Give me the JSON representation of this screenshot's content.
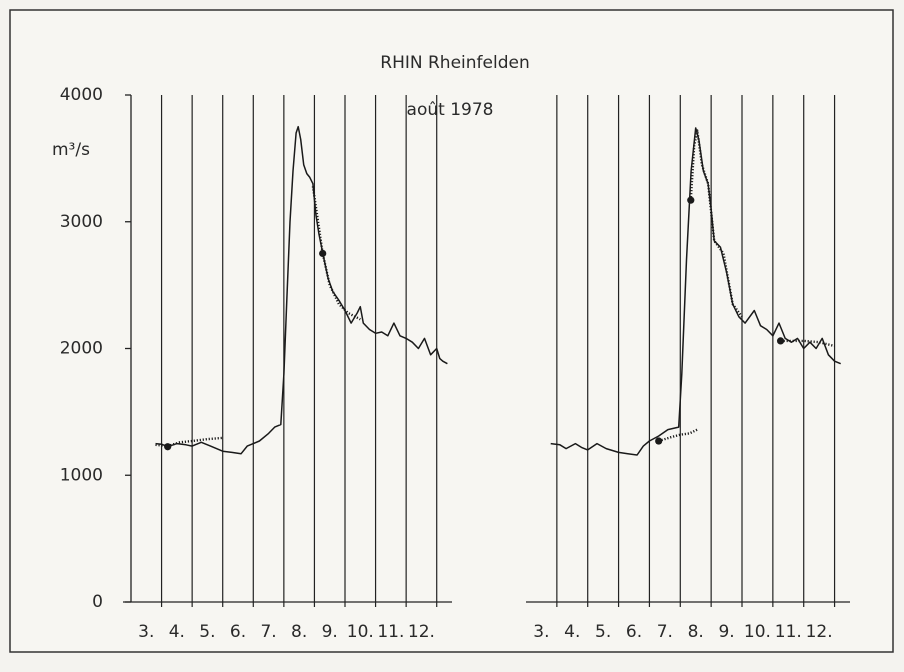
{
  "chart_data": [
    {
      "type": "line",
      "title": "RHIN Rheinfelden",
      "subtitle": "août 1978",
      "y_label": "m³/s",
      "ylim": [
        0,
        4000
      ],
      "yticks": [
        0,
        1000,
        2000,
        3000,
        4000
      ],
      "xlim": [
        3,
        13.5
      ],
      "xticks": [
        {
          "value": 3.5,
          "label": "3."
        },
        {
          "value": 4.5,
          "label": "4."
        },
        {
          "value": 5.5,
          "label": "5."
        },
        {
          "value": 6.5,
          "label": "6."
        },
        {
          "value": 7.5,
          "label": "7."
        },
        {
          "value": 8.5,
          "label": "8."
        },
        {
          "value": 9.5,
          "label": "9."
        },
        {
          "value": 10.5,
          "label": "10."
        },
        {
          "value": 11.5,
          "label": "11."
        },
        {
          "value": 12.5,
          "label": "12."
        }
      ],
      "xgrid": [
        4,
        5,
        6,
        7,
        8,
        9,
        10,
        11,
        12,
        13
      ],
      "series": [
        {
          "style": "solid",
          "color": "#1a1a1a",
          "x": [
            3.8,
            4.0,
            4.2,
            4.5,
            4.8,
            5.0,
            5.3,
            5.6,
            6.0,
            6.3,
            6.6,
            6.8,
            7.0,
            7.2,
            7.5,
            7.7,
            7.9,
            8.0,
            8.1,
            8.2,
            8.3,
            8.4,
            8.47,
            8.55,
            8.65,
            8.75,
            8.85,
            8.95,
            9.05,
            9.15,
            9.3,
            9.45,
            9.6,
            9.8,
            10.0,
            10.2,
            10.4,
            10.5,
            10.6,
            10.8,
            11.0,
            11.2,
            11.4,
            11.6,
            11.8,
            12.0,
            12.2,
            12.4,
            12.6,
            12.8,
            13.0,
            13.1,
            13.2,
            13.35
          ],
          "values": [
            1250,
            1245,
            1225,
            1250,
            1240,
            1230,
            1260,
            1230,
            1190,
            1180,
            1170,
            1230,
            1250,
            1270,
            1330,
            1380,
            1400,
            1800,
            2400,
            3000,
            3400,
            3700,
            3750,
            3650,
            3450,
            3380,
            3350,
            3300,
            3050,
            2900,
            2720,
            2550,
            2450,
            2380,
            2300,
            2200,
            2280,
            2330,
            2200,
            2150,
            2120,
            2130,
            2100,
            2200,
            2100,
            2080,
            2050,
            2000,
            2080,
            1950,
            2000,
            1920,
            1900,
            1880
          ]
        },
        {
          "style": "dotted",
          "color": "#1a1a1a",
          "x": [
            3.8,
            4.2,
            4.6,
            5.0,
            5.5,
            6.0,
            null,
            8.95,
            9.27,
            9.5,
            9.8,
            10.1,
            10.5
          ],
          "values": [
            1240,
            1230,
            1260,
            1270,
            1285,
            1295,
            null,
            3280,
            2750,
            2500,
            2350,
            2280,
            2230
          ]
        },
        {
          "style": "markers",
          "color": "#1a1a1a",
          "x": [
            4.2,
            9.27
          ],
          "values": [
            1225,
            2750
          ]
        }
      ]
    },
    {
      "type": "line",
      "ylim": [
        0,
        4000
      ],
      "xlim": [
        3,
        13.5
      ],
      "xticks": [
        {
          "value": 3.5,
          "label": "3."
        },
        {
          "value": 4.5,
          "label": "4."
        },
        {
          "value": 5.5,
          "label": "5."
        },
        {
          "value": 6.5,
          "label": "6."
        },
        {
          "value": 7.5,
          "label": "7."
        },
        {
          "value": 8.5,
          "label": "8."
        },
        {
          "value": 9.5,
          "label": "9."
        },
        {
          "value": 10.5,
          "label": "10."
        },
        {
          "value": 11.5,
          "label": "11."
        },
        {
          "value": 12.5,
          "label": "12."
        }
      ],
      "xgrid": [
        4,
        5,
        6,
        7,
        8,
        9,
        10,
        11,
        12,
        13
      ],
      "series": [
        {
          "style": "solid",
          "color": "#1a1a1a",
          "x": [
            3.8,
            4.1,
            4.3,
            4.6,
            4.8,
            5.0,
            5.3,
            5.6,
            6.0,
            6.3,
            6.6,
            6.8,
            7.0,
            7.3,
            7.6,
            7.95,
            8.05,
            8.2,
            8.35,
            8.5,
            8.6,
            8.75,
            8.9,
            9.0,
            9.1,
            9.3,
            9.5,
            9.7,
            9.9,
            10.1,
            10.4,
            10.6,
            10.8,
            11.0,
            11.2,
            11.4,
            11.6,
            11.8,
            12.0,
            12.2,
            12.4,
            12.6,
            12.8,
            13.0,
            13.2
          ],
          "values": [
            1250,
            1240,
            1210,
            1250,
            1220,
            1200,
            1250,
            1210,
            1180,
            1170,
            1160,
            1230,
            1270,
            1310,
            1360,
            1380,
            1800,
            2700,
            3400,
            3740,
            3650,
            3400,
            3300,
            3100,
            2850,
            2800,
            2600,
            2350,
            2250,
            2200,
            2300,
            2180,
            2150,
            2100,
            2200,
            2080,
            2050,
            2080,
            2000,
            2050,
            2000,
            2080,
            1950,
            1900,
            1880
          ]
        },
        {
          "style": "dotted",
          "color": "#1a1a1a",
          "x": [
            7.3,
            7.7,
            8.0,
            8.3,
            8.55,
            null,
            8.34,
            8.45,
            8.55,
            8.7,
            8.9,
            9.1,
            9.4,
            9.7,
            10.0,
            null,
            11.25,
            11.6,
            12.0,
            12.5,
            13.0
          ],
          "values": [
            1270,
            1300,
            1320,
            1330,
            1360,
            null,
            3170,
            3600,
            3720,
            3450,
            3300,
            2850,
            2750,
            2350,
            2250,
            null,
            2060,
            2060,
            2060,
            2050,
            2020
          ]
        },
        {
          "style": "markers",
          "color": "#1a1a1a",
          "x": [
            7.3,
            8.34,
            11.25
          ],
          "values": [
            1270,
            3170,
            2060
          ]
        }
      ]
    }
  ]
}
